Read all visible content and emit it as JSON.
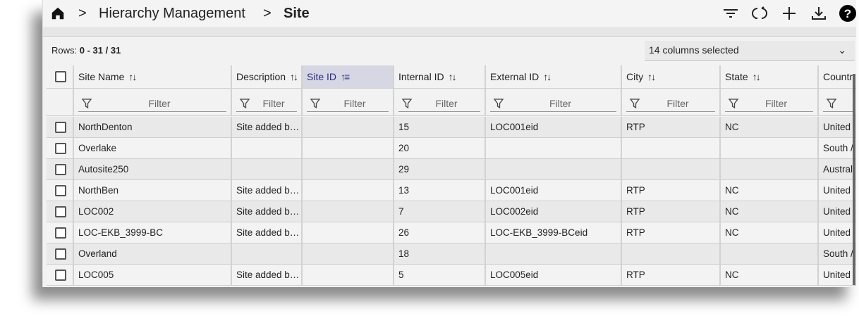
{
  "breadcrumb": {
    "home_icon": "home-icon",
    "items": [
      "Hierarchy Management",
      "Site"
    ]
  },
  "toolbar": {
    "icons": [
      "filter-list-icon",
      "refresh-icon",
      "add-icon",
      "download-icon",
      "help-icon"
    ]
  },
  "rows_label": "Rows:",
  "rows_value": "0 - 31 / 31",
  "column_select": {
    "value": "14 columns selected"
  },
  "filter_placeholder": "Filter",
  "columns": [
    {
      "label": "Site Name",
      "sort": "none"
    },
    {
      "label": "Description",
      "sort": "none"
    },
    {
      "label": "Site ID",
      "sort": "ascending",
      "active": true
    },
    {
      "label": "Internal ID",
      "sort": "none"
    },
    {
      "label": "External ID",
      "sort": "none"
    },
    {
      "label": "City",
      "sort": "none"
    },
    {
      "label": "State",
      "sort": "none"
    },
    {
      "label": "Countr",
      "sort": "none"
    }
  ],
  "rows": [
    [
      "NorthDenton",
      "Site added b…",
      "",
      "15",
      "LOC001eid",
      "RTP",
      "NC",
      "United"
    ],
    [
      "Overlake",
      "",
      "",
      "20",
      "",
      "",
      "",
      "South /"
    ],
    [
      "Autosite250",
      "",
      "",
      "29",
      "",
      "",
      "",
      "Austral"
    ],
    [
      "NorthBen",
      "Site added b…",
      "",
      "13",
      "LOC001eid",
      "RTP",
      "NC",
      "United"
    ],
    [
      "LOC002",
      "Site added b…",
      "",
      "7",
      "LOC002eid",
      "RTP",
      "NC",
      "United"
    ],
    [
      "LOC-EKB_3999-BC",
      "Site added b…",
      "",
      "26",
      "LOC-EKB_3999-BCeid",
      "RTP",
      "NC",
      "United"
    ],
    [
      "Overland",
      "",
      "",
      "18",
      "",
      "",
      "",
      "South /"
    ],
    [
      "LOC005",
      "Site added b…",
      "",
      "5",
      "LOC005eid",
      "RTP",
      "NC",
      "United"
    ]
  ],
  "colors": {
    "active_header_bg": "#d7d7e3",
    "active_header_text": "#2b2b8a",
    "row_odd": "#e9e9e9",
    "row_even": "#f3f3f3"
  }
}
